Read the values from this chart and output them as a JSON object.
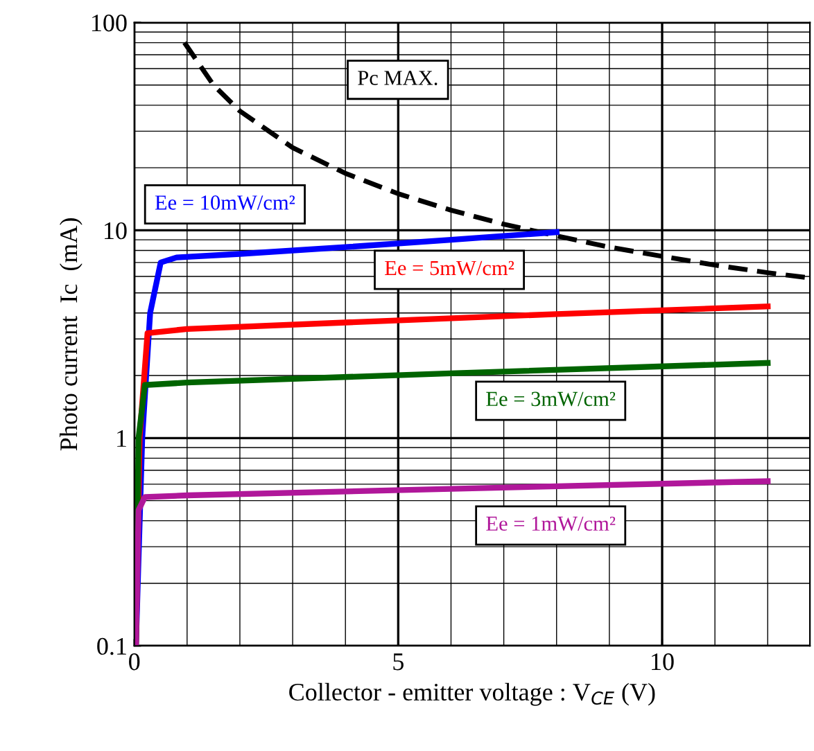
{
  "chart_data": {
    "type": "line",
    "xlabel": "Collector - emitter voltage : V$_{CE}$ (V)",
    "ylabel": "Photo current  Ic  (mA)",
    "log": "y",
    "xlim": [
      0,
      12.8
    ],
    "ylim": [
      0.1,
      100
    ],
    "xticks": [
      0,
      5,
      10
    ],
    "yticks": [
      0.1,
      1,
      10,
      100
    ],
    "grid": true,
    "marker": "none",
    "series": [
      {
        "name": "Pc MAX.",
        "color": "#000000",
        "line_style": "dashed",
        "x": [
          0.95,
          1.5,
          2,
          3,
          4,
          5,
          6,
          7,
          8,
          9,
          10,
          11,
          12,
          12.8
        ],
        "values": [
          80,
          50,
          37.5,
          25,
          18.8,
          15,
          12.5,
          10.7,
          9.4,
          8.3,
          7.5,
          6.8,
          6.25,
          5.9
        ]
      },
      {
        "name": "Ee = 10mW/cm²",
        "color": "#0000ff",
        "line_style": "solid",
        "x": [
          0.03,
          0.15,
          0.3,
          0.5,
          0.8,
          2,
          4,
          6,
          8
        ],
        "values": [
          0.1,
          1,
          4,
          7,
          7.4,
          7.7,
          8.3,
          9,
          9.8
        ]
      },
      {
        "name": "Ee = 5mW/cm²",
        "color": "#ff0000",
        "line_style": "solid",
        "x": [
          0.03,
          0.1,
          0.25,
          1,
          4,
          8,
          12
        ],
        "values": [
          0.1,
          1,
          3.2,
          3.35,
          3.6,
          3.95,
          4.3
        ]
      },
      {
        "name": "Ee = 3mW/cm²",
        "color": "#006400",
        "line_style": "solid",
        "x": [
          0.03,
          0.08,
          0.2,
          1,
          6,
          12
        ],
        "values": [
          0.1,
          1,
          1.8,
          1.85,
          2.05,
          2.3
        ]
      },
      {
        "name": "Ee = 1mW/cm²",
        "color": "#b0179a",
        "line_style": "solid",
        "x": [
          0.03,
          0.08,
          0.2,
          1,
          6,
          12
        ],
        "values": [
          0.1,
          0.45,
          0.52,
          0.53,
          0.57,
          0.62
        ]
      }
    ]
  }
}
